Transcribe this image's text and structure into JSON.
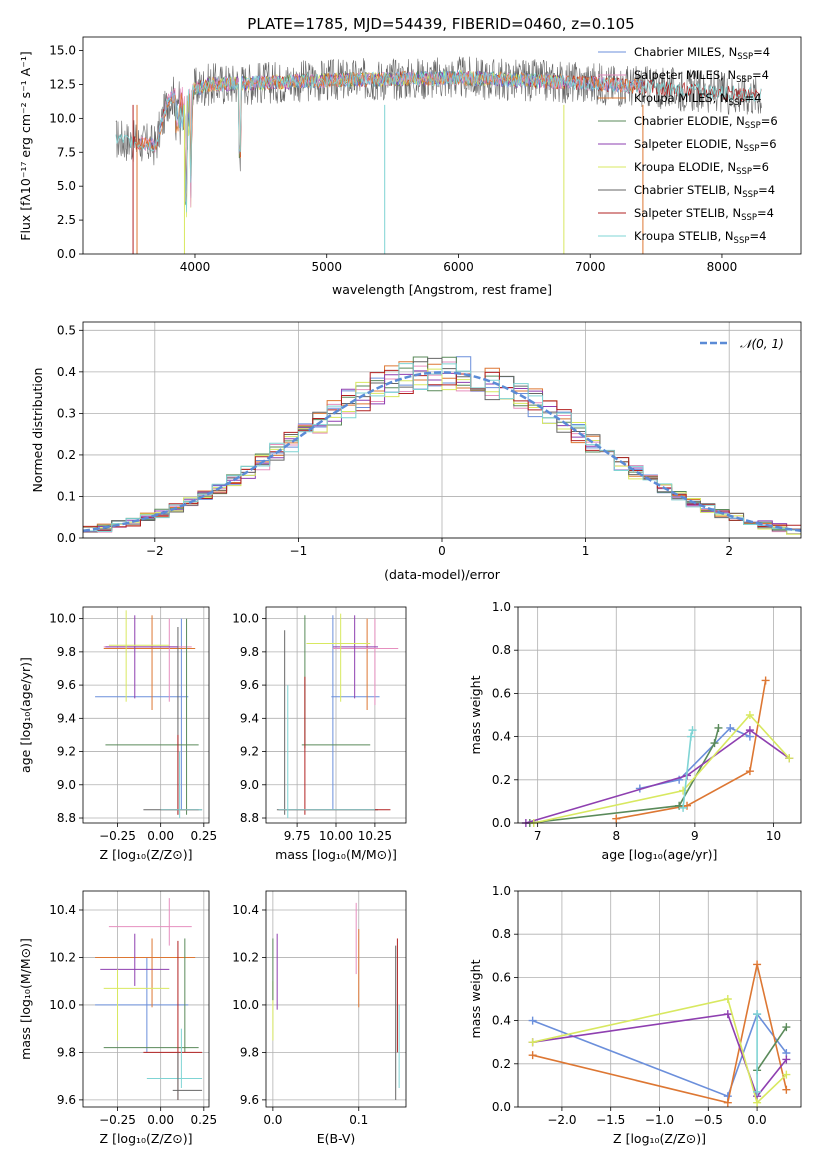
{
  "colors": {
    "chabrier_miles": "#6b8fdb",
    "salpeter_miles": "#e68fbf",
    "kroupa_miles": "#dd7733",
    "chabrier_elodie": "#5a8a5a",
    "salpeter_elodie": "#8e3fb0",
    "kroupa_elodie": "#d8e860",
    "chabrier_stelib": "#666666",
    "salpeter_stelib": "#b22222",
    "kroupa_stelib": "#7fd4d4"
  },
  "legend_entries": [
    {
      "key": "chabrier_miles",
      "pre": "Chabrier MILES, N",
      "post": "=4"
    },
    {
      "key": "salpeter_miles",
      "pre": "Salpeter MILES, N",
      "post": "=4"
    },
    {
      "key": "kroupa_miles",
      "pre": "Kroupa MILES, N",
      "post": "=4"
    },
    {
      "key": "chabrier_elodie",
      "pre": "Chabrier ELODIE, N",
      "post": "=6"
    },
    {
      "key": "salpeter_elodie",
      "pre": "Salpeter ELODIE, N",
      "post": "=6"
    },
    {
      "key": "kroupa_elodie",
      "pre": "Kroupa ELODIE, N",
      "post": "=6"
    },
    {
      "key": "chabrier_stelib",
      "pre": "Chabrier STELIB, N",
      "post": "=4"
    },
    {
      "key": "salpeter_stelib",
      "pre": "Salpeter STELIB, N",
      "post": "=4"
    },
    {
      "key": "kroupa_stelib",
      "pre": "Kroupa STELIB, N",
      "post": "=4"
    }
  ],
  "ssp_subscript": "SSP",
  "chart_data": [
    {
      "type": "line",
      "title": "PLATE=1785, MJD=54439, FIBERID=0460, z=0.105",
      "xlabel": "wavelength [Angstrom, rest frame]",
      "ylabel": "Flux [fλ10⁻¹⁷ erg cm⁻² s⁻¹ A⁻¹]",
      "xlim": [
        3150,
        8600
      ],
      "ylim": [
        0,
        16
      ],
      "xticks": [
        4000,
        5000,
        6000,
        7000,
        8000
      ],
      "yticks": [
        0.0,
        2.5,
        5.0,
        7.5,
        10.0,
        12.5,
        15.0
      ],
      "grid": false,
      "legend": "top-right",
      "spectrum_profile": [
        [
          3400,
          8.5
        ],
        [
          3700,
          8.0
        ],
        [
          3800,
          11.5
        ],
        [
          4100,
          12.5
        ],
        [
          5000,
          12.8
        ],
        [
          6000,
          13.0
        ],
        [
          7000,
          12.6
        ],
        [
          8300,
          11.7
        ]
      ],
      "spectrum_range": [
        3400,
        8300
      ]
    },
    {
      "type": "bar",
      "xlabel": "(data-model)/error",
      "ylabel": "Normed distribution",
      "xlim": [
        -2.5,
        2.5
      ],
      "ylim": [
        0,
        0.52
      ],
      "xticks": [
        -2,
        -1,
        0,
        1,
        2
      ],
      "yticks": [
        0.0,
        0.1,
        0.2,
        0.3,
        0.4,
        0.5
      ],
      "grid": true,
      "legend": "top-right",
      "reference_curve": "𝒩(0, 1)",
      "bin_width": 0.1
    },
    {
      "type": "scatter",
      "xlabel": "Z [log₁₀(Z/Z⊙)]",
      "ylabel": "age  [log₁₀(age/yr)]",
      "xlim": [
        -0.45,
        0.28
      ],
      "ylim": [
        8.77,
        10.07
      ],
      "xticks": [
        -0.25,
        0.0,
        0.25
      ],
      "xtick_labels": [
        "−0.25",
        "0.00",
        "0.25"
      ],
      "yticks": [
        8.8,
        9.0,
        9.2,
        9.4,
        9.6,
        9.8,
        10.0
      ],
      "grid": true
    },
    {
      "type": "scatter",
      "xlabel": "mass [log₁₀(M/M⊙)]",
      "xlim": [
        9.55,
        10.45
      ],
      "ylim": [
        8.77,
        10.07
      ],
      "xticks": [
        9.75,
        10.0,
        10.25
      ],
      "xtick_labels": [
        "9.75",
        "10.00",
        "10.25"
      ],
      "yticks": [
        8.8,
        9.0,
        9.2,
        9.4,
        9.6,
        9.8,
        10.0
      ],
      "grid": true
    },
    {
      "type": "line",
      "xlabel": "age  [log₁₀(age/yr)]",
      "ylabel": "mass weight",
      "xlim": [
        6.75,
        10.35
      ],
      "ylim": [
        0,
        1.0
      ],
      "xticks": [
        7,
        8,
        9,
        10
      ],
      "yticks": [
        0.0,
        0.2,
        0.4,
        0.6,
        0.8,
        1.0
      ],
      "grid": true,
      "series": [
        {
          "key": "chabrier_miles",
          "x": [
            8.3,
            8.8,
            9.45,
            9.7
          ],
          "y": [
            0.16,
            0.2,
            0.44,
            0.4
          ]
        },
        {
          "key": "kroupa_miles",
          "x": [
            8.0,
            8.9,
            9.7,
            9.9
          ],
          "y": [
            0.02,
            0.08,
            0.24,
            0.66
          ]
        },
        {
          "key": "chabrier_elodie",
          "x": [
            6.9,
            8.8,
            9.25,
            9.3
          ],
          "y": [
            0.0,
            0.08,
            0.37,
            0.44
          ]
        },
        {
          "key": "salpeter_elodie",
          "x": [
            6.85,
            8.9,
            9.7,
            10.2
          ],
          "y": [
            0.0,
            0.22,
            0.43,
            0.3
          ]
        },
        {
          "key": "kroupa_elodie",
          "x": [
            6.95,
            8.85,
            9.7,
            10.2
          ],
          "y": [
            0.0,
            0.15,
            0.5,
            0.3
          ]
        },
        {
          "key": "kroupa_stelib",
          "x": [
            8.85,
            8.95,
            8.97
          ],
          "y": [
            0.07,
            0.4,
            0.43
          ]
        }
      ]
    },
    {
      "type": "scatter",
      "xlabel": "Z [log₁₀(Z/Z⊙)]",
      "ylabel": "mass [log₁₀(M/M⊙)]",
      "xlim": [
        -0.45,
        0.28
      ],
      "ylim": [
        9.57,
        10.48
      ],
      "xticks": [
        -0.25,
        0.0,
        0.25
      ],
      "xtick_labels": [
        "−0.25",
        "0.00",
        "0.25"
      ],
      "yticks": [
        9.6,
        9.8,
        10.0,
        10.2,
        10.4
      ],
      "grid": true
    },
    {
      "type": "scatter",
      "xlabel": "E(B-V)",
      "xlim": [
        -0.008,
        0.155
      ],
      "ylim": [
        9.57,
        10.48
      ],
      "xticks": [
        0.0,
        0.1
      ],
      "xtick_labels": [
        "0.0",
        "0.1"
      ],
      "yticks": [
        9.6,
        9.8,
        10.0,
        10.2,
        10.4
      ],
      "grid": true
    },
    {
      "type": "line",
      "xlabel": "Z [log₁₀(Z/Z⊙)]",
      "ylabel": "mass weight",
      "xlim": [
        -2.45,
        0.45
      ],
      "ylim": [
        0,
        1.0
      ],
      "xticks": [
        -2.0,
        -1.5,
        -1.0,
        -0.5,
        0.0
      ],
      "xtick_labels": [
        "−2.0",
        "−1.5",
        "−1.0",
        "−0.5",
        "0.0"
      ],
      "yticks": [
        0.0,
        0.2,
        0.4,
        0.6,
        0.8,
        1.0
      ],
      "grid": true,
      "series": [
        {
          "key": "chabrier_miles",
          "x": [
            -2.3,
            -0.3,
            0.0,
            0.3
          ],
          "y": [
            0.4,
            0.05,
            0.43,
            0.25
          ]
        },
        {
          "key": "kroupa_miles",
          "x": [
            -2.3,
            -0.3,
            0.0,
            0.3
          ],
          "y": [
            0.24,
            0.02,
            0.66,
            0.08
          ]
        },
        {
          "key": "salpeter_elodie",
          "x": [
            -2.3,
            -0.3,
            0.0,
            0.3
          ],
          "y": [
            0.3,
            0.43,
            0.05,
            0.22
          ]
        },
        {
          "key": "kroupa_elodie",
          "x": [
            -2.3,
            -0.3,
            0.0,
            0.3
          ],
          "y": [
            0.3,
            0.5,
            0.02,
            0.15
          ]
        },
        {
          "key": "chabrier_elodie",
          "x": [
            0.0,
            0.3
          ],
          "y": [
            0.17,
            0.37
          ]
        },
        {
          "key": "kroupa_stelib",
          "x": [
            0.0,
            0.0
          ],
          "y": [
            0.07,
            0.43
          ]
        }
      ]
    }
  ]
}
